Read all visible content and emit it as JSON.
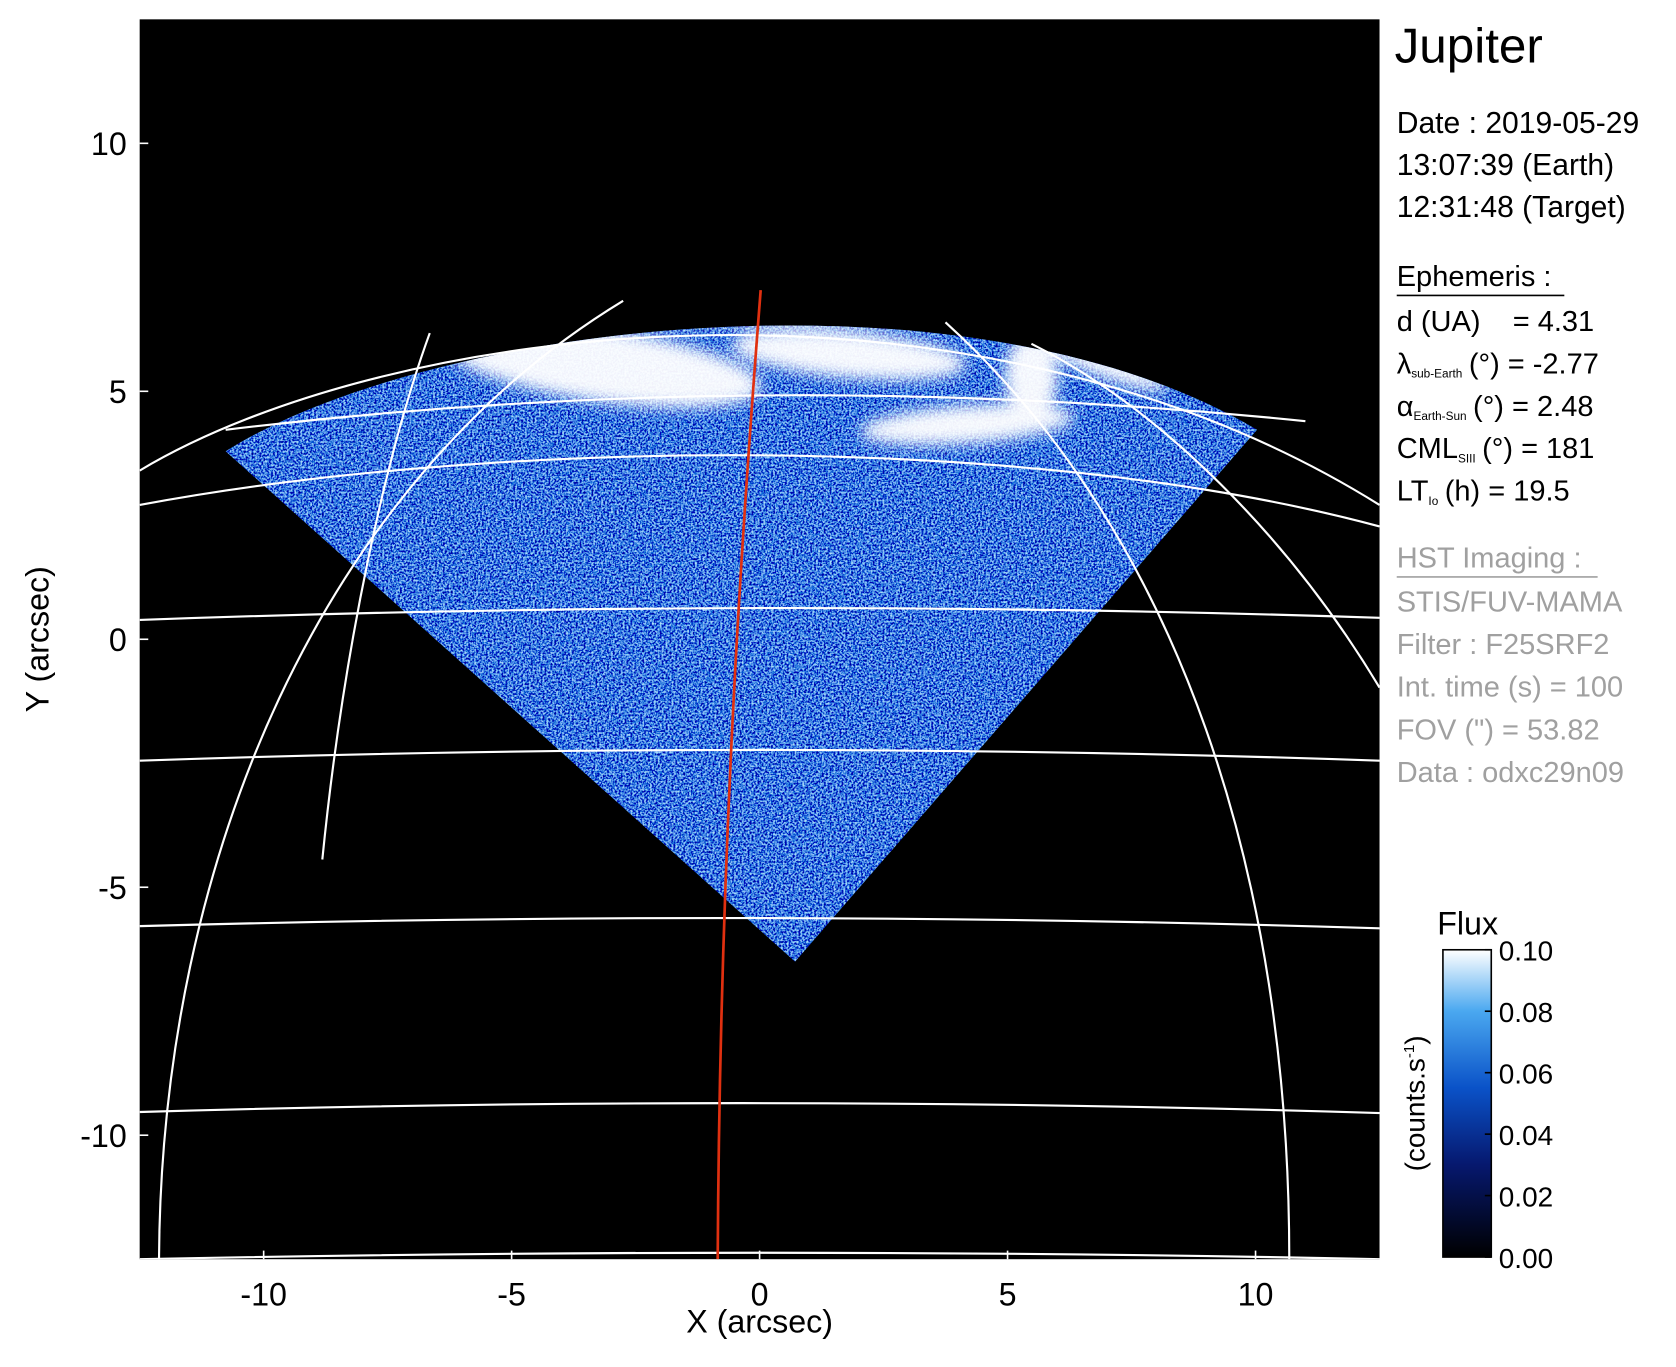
{
  "chart_data": {
    "type": "image",
    "title": "Jupiter",
    "x_label": "X (arcsec)",
    "y_label": "Y (arcsec)",
    "xlim": [
      -12.5,
      12.5
    ],
    "ylim": [
      -12.5,
      12.5
    ],
    "xticks": [
      -10,
      -5,
      0,
      5,
      10
    ],
    "yticks": [
      -10,
      -5,
      0,
      5,
      10
    ],
    "date_lines": [
      "Date : 2019-05-29",
      "13:07:39 (Earth)",
      "12:31:48 (Target)"
    ],
    "ephemeris_title": "Ephemeris :",
    "ephemeris": [
      {
        "text": "d (UA)    = 4.31"
      },
      {
        "symbol": "λ",
        "sub": "sub-Earth",
        "text": "(°) = -2.77"
      },
      {
        "symbol": "α",
        "sub": "Earth-Sun",
        "text": "(°) = 2.48"
      },
      {
        "symbol": "CML",
        "sub": "SIII",
        "text": "(°) = 181"
      },
      {
        "symbol": "LT",
        "sub": "Io",
        "text": "(h) = 19.5"
      }
    ],
    "imaging_title": "HST Imaging :",
    "imaging": [
      "STIS/FUV-MAMA",
      "Filter : F25SRF2",
      "Int. time (s) = 100",
      "FOV (\") = 53.82",
      "Data : odxc29n09"
    ],
    "colorbar": {
      "title": "Flux",
      "label": "(counts.s",
      "label_sup": "-1",
      "label_end": ")",
      "lim": [
        0,
        0.1
      ],
      "ticks": [
        {
          "value": 0,
          "label": "0.00"
        },
        0.02,
        0.04,
        0.06,
        0.08,
        {
          "value": 0.1,
          "label": "0.10"
        }
      ]
    }
  }
}
